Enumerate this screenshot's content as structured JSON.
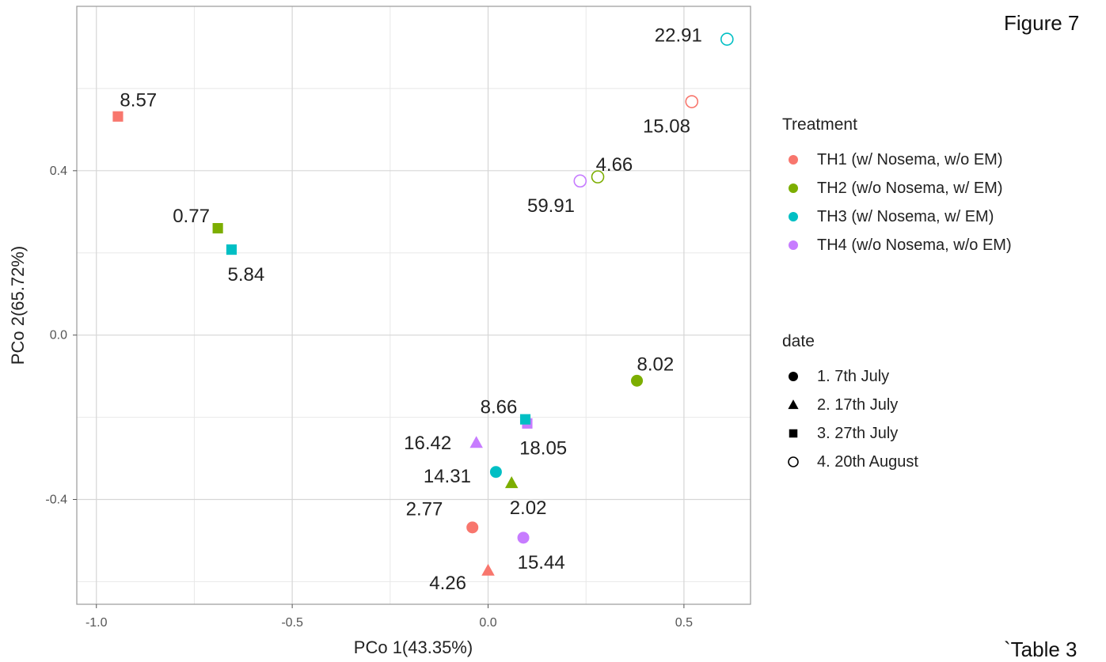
{
  "captions": {
    "figure": "Figure 7",
    "table": "`Table 3"
  },
  "chart_data": {
    "type": "scatter",
    "xlabel": "PCo 1(43.35%)",
    "ylabel": "PCo 2(65.72%)",
    "xlim": [
      -1.05,
      0.67
    ],
    "ylim": [
      -0.655,
      0.8
    ],
    "xticks": [
      -1.0,
      -0.5,
      0.0,
      0.5
    ],
    "xtick_labels": [
      "-1.0",
      "-0.5",
      "0.0",
      "0.5"
    ],
    "yticks": [
      -0.4,
      0.0,
      0.4
    ],
    "ytick_labels": [
      "-0.4",
      "0.0",
      "0.4"
    ],
    "grid": true,
    "legend_position": "right",
    "treatment_legend": {
      "title": "Treatment",
      "items": [
        {
          "key": "TH1",
          "label": "TH1 (w/ Nosema, w/o EM)",
          "color": "#F8766D"
        },
        {
          "key": "TH2",
          "label": "TH2 (w/o Nosema, w/ EM)",
          "color": "#7CAE00"
        },
        {
          "key": "TH3",
          "label": "TH3 (w/ Nosema, w/ EM)",
          "color": "#00BFC4"
        },
        {
          "key": "TH4",
          "label": "TH4 (w/o Nosema, w/o EM)",
          "color": "#C77CFF"
        }
      ]
    },
    "date_legend": {
      "title": "date",
      "items": [
        {
          "key": "d1",
          "label": "1. 7th July",
          "shape": "circle"
        },
        {
          "key": "d2",
          "label": "2. 17th July",
          "shape": "triangle"
        },
        {
          "key": "d3",
          "label": "3. 27th July",
          "shape": "square"
        },
        {
          "key": "d4",
          "label": "4. 20th August",
          "shape": "open-circle"
        }
      ]
    },
    "points": [
      {
        "treatment": "TH1",
        "date": "d1",
        "x": -0.04,
        "y": -0.468,
        "label": "2.77",
        "label_anchor": "left",
        "label_dx": -0.17,
        "label_dy": 0.045
      },
      {
        "treatment": "TH1",
        "date": "d2",
        "x": 0.0,
        "y": -0.573,
        "label": "4.26",
        "label_anchor": "left",
        "label_dx": -0.15,
        "label_dy": -0.03
      },
      {
        "treatment": "TH1",
        "date": "d3",
        "x": -0.945,
        "y": 0.532,
        "label": "8.57",
        "label_anchor": "left",
        "label_dx": 0.005,
        "label_dy": 0.04
      },
      {
        "treatment": "TH1",
        "date": "d4",
        "x": 0.52,
        "y": 0.568,
        "label": "15.08",
        "label_anchor": "left",
        "label_dx": -0.125,
        "label_dy": -0.06
      },
      {
        "treatment": "TH2",
        "date": "d1",
        "x": 0.38,
        "y": -0.111,
        "label": "8.02",
        "label_anchor": "left",
        "label_dx": 0.0,
        "label_dy": 0.04
      },
      {
        "treatment": "TH2",
        "date": "d2",
        "x": 0.06,
        "y": -0.36,
        "label": "2.02",
        "label_anchor": "left",
        "label_dx": -0.005,
        "label_dy": -0.06
      },
      {
        "treatment": "TH2",
        "date": "d3",
        "x": -0.69,
        "y": 0.26,
        "label": "0.77",
        "label_anchor": "left",
        "label_dx": -0.115,
        "label_dy": 0.03
      },
      {
        "treatment": "TH2",
        "date": "d4",
        "x": 0.28,
        "y": 0.385,
        "label": "4.66",
        "label_anchor": "left",
        "label_dx": -0.005,
        "label_dy": 0.03
      },
      {
        "treatment": "TH3",
        "date": "d1",
        "x": 0.02,
        "y": -0.333,
        "label": "14.31",
        "label_anchor": "left",
        "label_dx": -0.185,
        "label_dy": -0.01
      },
      {
        "treatment": "TH3",
        "date": "d3",
        "x": -0.655,
        "y": 0.208,
        "label": "5.84",
        "label_anchor": "left",
        "label_dx": -0.01,
        "label_dy": -0.06
      },
      {
        "treatment": "TH3",
        "date": "d4",
        "x": 0.61,
        "y": 0.72,
        "label": "22.91",
        "label_anchor": "left",
        "label_dx": -0.185,
        "label_dy": 0.01
      },
      {
        "treatment": "TH4",
        "date": "d1",
        "x": 0.09,
        "y": -0.493,
        "label": "15.44",
        "label_anchor": "left",
        "label_dx": -0.015,
        "label_dy": -0.06
      },
      {
        "treatment": "TH4",
        "date": "d2",
        "x": -0.03,
        "y": -0.262,
        "label": "16.42",
        "label_anchor": "left",
        "label_dx": -0.185,
        "label_dy": 0.0
      },
      {
        "treatment": "TH4",
        "date": "d3",
        "x": 0.1,
        "y": -0.215,
        "label": "18.05",
        "label_anchor": "left",
        "label_dx": -0.02,
        "label_dy": -0.06
      },
      {
        "treatment": "TH4",
        "date": "d4",
        "x": 0.235,
        "y": 0.375,
        "label": "59.91",
        "label_anchor": "left",
        "label_dx": -0.135,
        "label_dy": -0.06
      },
      {
        "treatment": "TH3",
        "date": "d3",
        "x": 0.095,
        "y": -0.205,
        "label": "8.66",
        "label_anchor": "left",
        "label_dx": -0.115,
        "label_dy": 0.03
      }
    ]
  }
}
